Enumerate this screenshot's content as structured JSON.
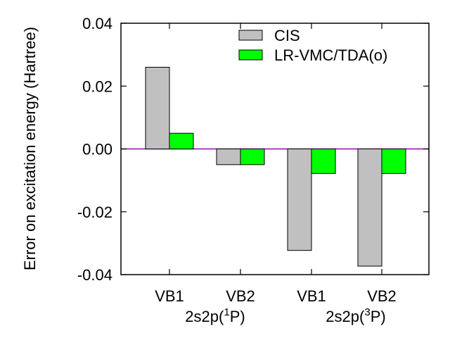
{
  "chart_data": {
    "type": "bar",
    "title": "",
    "xlabel": "",
    "ylabel": "Error on excitation energy (Hartree)",
    "ylim": [
      -0.04,
      0.04
    ],
    "yticks": [
      "0.04",
      "0.02",
      "0.00",
      "-0.02",
      "-0.04"
    ],
    "ytick_values": [
      0.04,
      0.02,
      0.0,
      -0.02,
      -0.04
    ],
    "categories": [
      "VB1",
      "VB2",
      "VB1",
      "VB2"
    ],
    "groups": [
      {
        "base": "2s2p(",
        "sup": "1",
        "tail": "P)"
      },
      {
        "base": "2s2p(",
        "sup": "3",
        "tail": "P)"
      }
    ],
    "series": [
      {
        "name": "CIS",
        "values": [
          0.026,
          -0.005,
          -0.0323,
          -0.0373
        ],
        "color": "#c0c0c0"
      },
      {
        "name": "LR-VMC/TDA(o)",
        "values": [
          0.005,
          -0.005,
          -0.0078,
          -0.0078
        ],
        "color": "#00ff00"
      }
    ],
    "zero_line_color": "#a000c0",
    "legend_position": "top-right",
    "grid": false
  }
}
